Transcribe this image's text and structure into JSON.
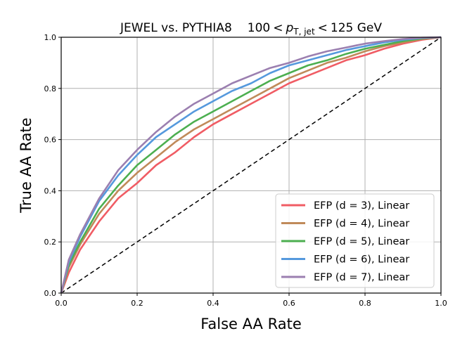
{
  "chart_data": {
    "type": "line",
    "title": {
      "left": "JEWEL vs. PYTHIA8",
      "range_low": "100",
      "lt": "<",
      "var_main": "p",
      "var_sub": "T, jet",
      "range_high": "125 GeV"
    },
    "xlabel": "False AA Rate",
    "ylabel": "True AA Rate",
    "xlim": [
      0.0,
      1.0
    ],
    "ylim": [
      0.0,
      1.0
    ],
    "xticks": [
      "0.0",
      "0.2",
      "0.4",
      "0.6",
      "0.8",
      "1.0"
    ],
    "yticks": [
      "0.0",
      "0.2",
      "0.4",
      "0.6",
      "0.8",
      "1.0"
    ],
    "grid": true,
    "legend_position": "lower-right",
    "diagonal": {
      "x": [
        0,
        1
      ],
      "y": [
        0,
        1
      ],
      "style": "dashed",
      "color": "#000000"
    },
    "series": [
      {
        "name": "EFP (d = 3), Linear",
        "color": "#f05c64",
        "x": [
          0,
          0.02,
          0.05,
          0.1,
          0.15,
          0.2,
          0.25,
          0.3,
          0.35,
          0.4,
          0.45,
          0.5,
          0.55,
          0.6,
          0.65,
          0.7,
          0.75,
          0.8,
          0.85,
          0.9,
          0.95,
          1.0
        ],
        "y": [
          0,
          0.08,
          0.17,
          0.28,
          0.37,
          0.43,
          0.5,
          0.55,
          0.61,
          0.66,
          0.7,
          0.74,
          0.78,
          0.82,
          0.85,
          0.88,
          0.91,
          0.93,
          0.955,
          0.975,
          0.99,
          1.0
        ]
      },
      {
        "name": "EFP (d = 4), Linear",
        "color": "#c08a5a",
        "x": [
          0,
          0.02,
          0.05,
          0.1,
          0.15,
          0.2,
          0.25,
          0.3,
          0.35,
          0.4,
          0.45,
          0.5,
          0.55,
          0.6,
          0.65,
          0.7,
          0.75,
          0.8,
          0.85,
          0.9,
          0.95,
          1.0
        ],
        "y": [
          0,
          0.1,
          0.19,
          0.31,
          0.4,
          0.47,
          0.53,
          0.59,
          0.64,
          0.68,
          0.72,
          0.76,
          0.8,
          0.84,
          0.87,
          0.9,
          0.92,
          0.945,
          0.965,
          0.98,
          0.993,
          1.0
        ]
      },
      {
        "name": "EFP (d = 5), Linear",
        "color": "#4caf50",
        "x": [
          0,
          0.02,
          0.05,
          0.1,
          0.15,
          0.2,
          0.25,
          0.3,
          0.35,
          0.4,
          0.45,
          0.5,
          0.55,
          0.6,
          0.65,
          0.7,
          0.75,
          0.8,
          0.85,
          0.9,
          0.95,
          1.0
        ],
        "y": [
          0,
          0.11,
          0.2,
          0.33,
          0.42,
          0.5,
          0.56,
          0.62,
          0.67,
          0.71,
          0.75,
          0.79,
          0.83,
          0.86,
          0.89,
          0.91,
          0.935,
          0.955,
          0.97,
          0.985,
          0.995,
          1.0
        ]
      },
      {
        "name": "EFP (d = 6), Linear",
        "color": "#5599dd",
        "x": [
          0,
          0.02,
          0.05,
          0.1,
          0.15,
          0.2,
          0.25,
          0.3,
          0.35,
          0.4,
          0.45,
          0.5,
          0.55,
          0.6,
          0.65,
          0.7,
          0.75,
          0.8,
          0.85,
          0.9,
          0.95,
          1.0
        ],
        "y": [
          0,
          0.12,
          0.22,
          0.36,
          0.46,
          0.54,
          0.61,
          0.66,
          0.71,
          0.75,
          0.79,
          0.82,
          0.86,
          0.89,
          0.91,
          0.93,
          0.95,
          0.965,
          0.98,
          0.99,
          0.997,
          1.0
        ]
      },
      {
        "name": "EFP (d = 7), Linear",
        "color": "#9b7fb0",
        "x": [
          0,
          0.02,
          0.05,
          0.1,
          0.15,
          0.2,
          0.25,
          0.3,
          0.35,
          0.4,
          0.45,
          0.5,
          0.55,
          0.6,
          0.65,
          0.7,
          0.75,
          0.8,
          0.85,
          0.9,
          0.95,
          1.0
        ],
        "y": [
          0,
          0.13,
          0.23,
          0.37,
          0.48,
          0.56,
          0.63,
          0.69,
          0.74,
          0.78,
          0.82,
          0.85,
          0.88,
          0.9,
          0.925,
          0.945,
          0.96,
          0.975,
          0.985,
          0.993,
          0.998,
          1.0
        ]
      }
    ]
  }
}
